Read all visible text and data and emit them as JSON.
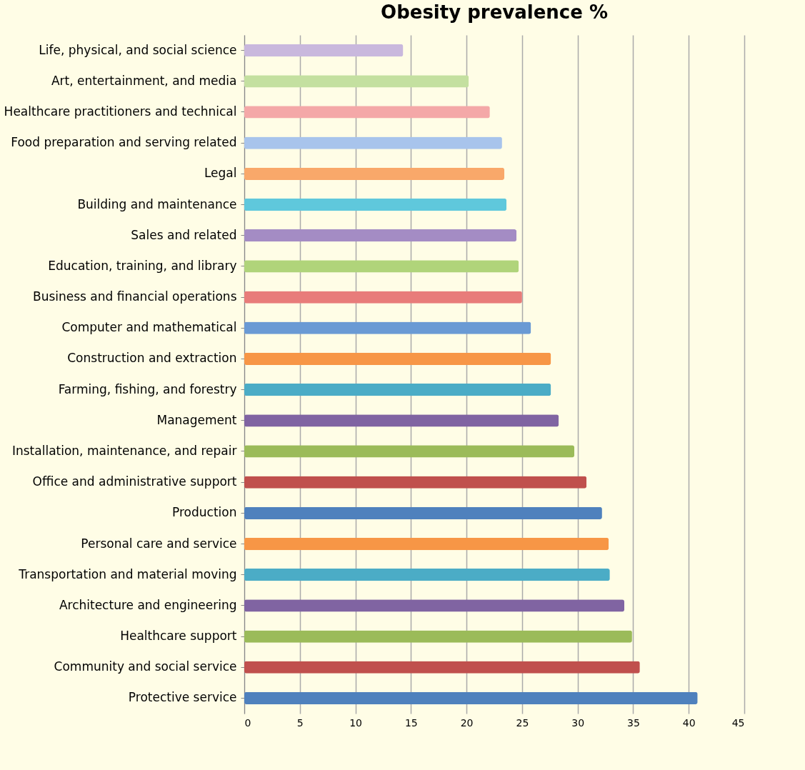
{
  "chart_data": {
    "type": "bar",
    "orientation": "horizontal",
    "title": "Obesity prevalence %",
    "categories": [
      "Life, physical, and social science",
      "Art, entertainment, and media",
      "Healthcare practitioners and technical",
      "Food preparation and serving related",
      "Legal",
      "Building and maintenance",
      "Sales and related",
      "Education, training, and library",
      "Business and financial operations",
      "Computer and mathematical",
      "Construction and extraction",
      "Farming, fishing, and forestry",
      "Management",
      "Installation, maintenance, and repair",
      "Office and administrative support",
      "Production",
      "Personal care and service",
      "Transportation and material moving",
      "Architecture and engineering",
      "Healthcare support",
      "Community and social service",
      "Protective service"
    ],
    "values": [
      14.3,
      20.2,
      22.1,
      23.2,
      23.4,
      23.6,
      24.5,
      24.7,
      25.0,
      25.8,
      27.6,
      27.6,
      28.3,
      29.7,
      30.8,
      32.2,
      32.8,
      32.9,
      34.2,
      34.9,
      35.6,
      40.8
    ],
    "colors": [
      "#c9b8dd",
      "#c4e0a0",
      "#f4a8a8",
      "#a8c4ec",
      "#f9a86a",
      "#5fc8dc",
      "#a48cc4",
      "#b0d47a",
      "#e87c7a",
      "#6a9ad4",
      "#f79646",
      "#4bacc6",
      "#8064a2",
      "#9bbb59",
      "#c0504d",
      "#4f81bd",
      "#f79646",
      "#4bacc6",
      "#8064a2",
      "#9bbb59",
      "#c0504d",
      "#4f81bd"
    ],
    "xlim": [
      0,
      45
    ],
    "xticks": [
      0,
      5,
      10,
      15,
      20,
      25,
      30,
      35,
      40,
      45
    ],
    "grid": "x"
  }
}
